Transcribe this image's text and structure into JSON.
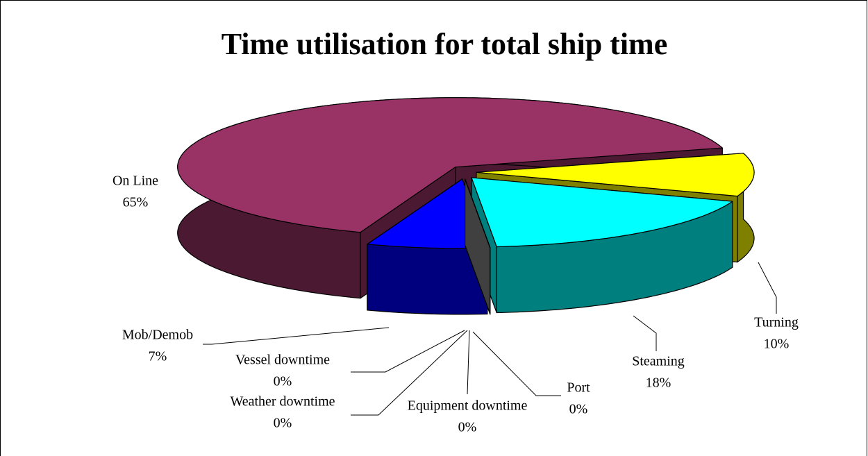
{
  "chart_data": {
    "type": "pie3d",
    "title": "Time utilisation for total ship time",
    "categories": [
      "Turning",
      "Steaming",
      "Port",
      "Equipment downtime",
      "Weather downtime",
      "Vessel downtime",
      "Mob/Demob",
      "On Line"
    ],
    "values": [
      10,
      18,
      0,
      0,
      0,
      0,
      7,
      65
    ],
    "value_labels": [
      "10%",
      "18%",
      "0%",
      "0%",
      "0%",
      "0%",
      "7%",
      "65%"
    ],
    "colors": [
      "#ffff00",
      "#00ffff",
      "#ccccff",
      "#ffffff",
      "#c0c0c0",
      "#808080",
      "#0000ff",
      "#993366"
    ]
  }
}
